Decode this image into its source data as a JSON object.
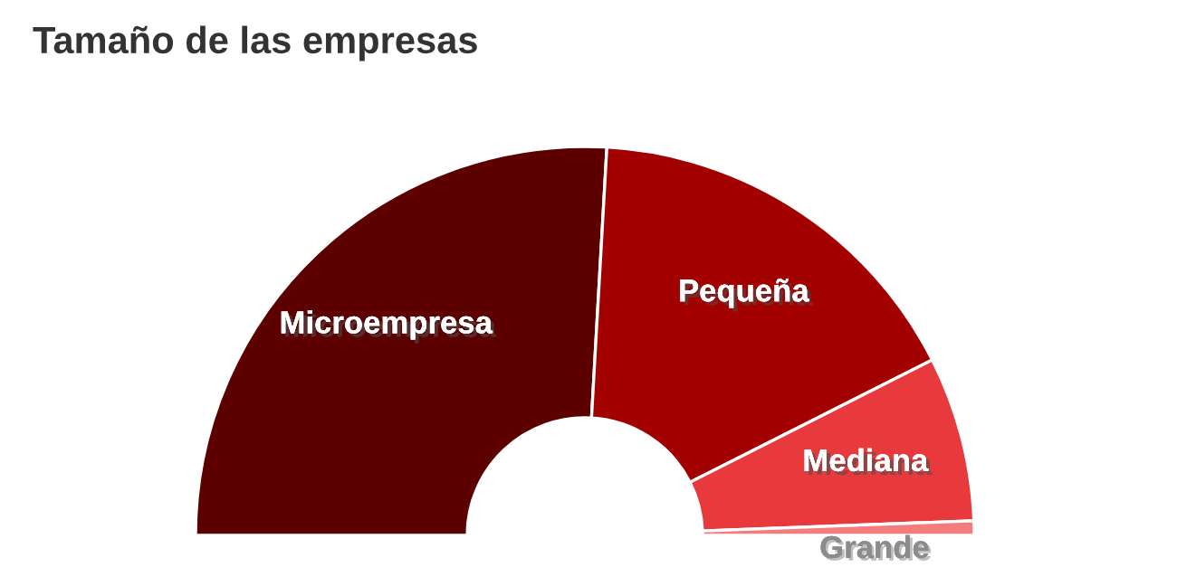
{
  "chart_data": {
    "type": "donut",
    "title": "Tamaño de las empresas",
    "categories": [
      "Microempresa",
      "Pequeña",
      "Mediana",
      "Grande"
    ],
    "values": [
      51.8,
      33.3,
      13.7,
      1.2
    ],
    "colors": [
      "#5c0000",
      "#a30000",
      "#e83a3c",
      "#f47c7c"
    ],
    "legend": false
  }
}
